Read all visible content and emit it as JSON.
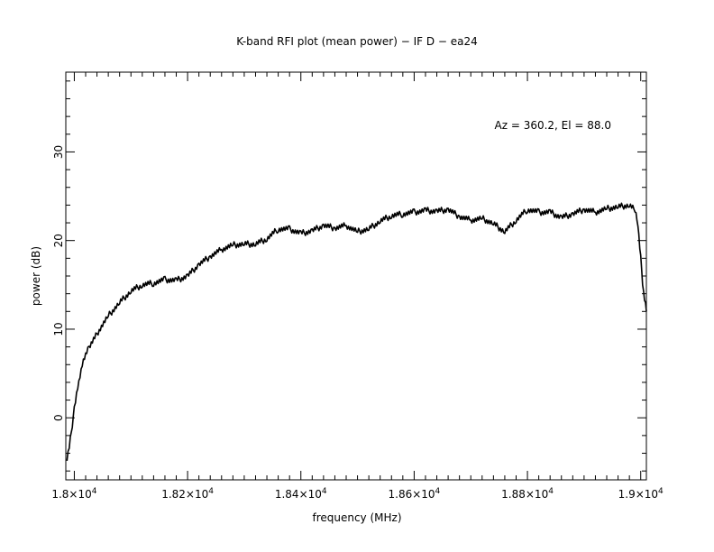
{
  "chart_data": {
    "type": "line",
    "title": "K-band RFI plot (mean power) − IF D − ea24",
    "xlabel": "frequency (MHz)",
    "ylabel": "power (dB)",
    "annotation": "Az = 360.2, El = 88.0",
    "xlim": [
      17985,
      19010
    ],
    "ylim": [
      -7,
      39
    ],
    "x_ticks": [
      {
        "value": 18000,
        "mantissa": "1.8×10",
        "exp": "4"
      },
      {
        "value": 18200,
        "mantissa": "1.82×10",
        "exp": "4"
      },
      {
        "value": 18400,
        "mantissa": "1.84×10",
        "exp": "4"
      },
      {
        "value": 18600,
        "mantissa": "1.86×10",
        "exp": "4"
      },
      {
        "value": 18800,
        "mantissa": "1.88×10",
        "exp": "4"
      },
      {
        "value": 19000,
        "mantissa": "1.9×10",
        "exp": "4"
      }
    ],
    "y_ticks": [
      {
        "value": 0,
        "label": "0"
      },
      {
        "value": 10,
        "label": "10"
      },
      {
        "value": 20,
        "label": "20"
      },
      {
        "value": 30,
        "label": "30"
      }
    ],
    "grid": false,
    "series": [
      {
        "x": [
          17987,
          17993,
          18000,
          18008,
          18016,
          18026,
          18040,
          18060,
          18080,
          18100,
          18120,
          18140,
          18160,
          18180,
          18200,
          18220,
          18240,
          18260,
          18280,
          18300,
          18320,
          18340,
          18360,
          18380,
          18400,
          18420,
          18440,
          18460,
          18480,
          18500,
          18520,
          18540,
          18560,
          18580,
          18600,
          18620,
          18640,
          18660,
          18680,
          18700,
          18720,
          18740,
          18760,
          18780,
          18800,
          18820,
          18840,
          18860,
          18880,
          18900,
          18920,
          18940,
          18960,
          18980,
          18990,
          18995,
          19000,
          19005,
          19010
        ],
        "y": [
          -4.5,
          -2.5,
          1,
          4,
          6.5,
          8,
          9.5,
          11.5,
          13,
          14.3,
          15,
          15.2,
          15.6,
          15.5,
          16,
          17.3,
          18.2,
          19,
          19.5,
          19.6,
          19.6,
          20.2,
          21.3,
          21.3,
          20.8,
          21.1,
          21.7,
          21.4,
          21.7,
          21,
          21.3,
          22.2,
          22.8,
          23,
          23.2,
          23.4,
          23.3,
          23.5,
          22.7,
          22.3,
          22.5,
          21.9,
          21,
          22.3,
          23.5,
          23.2,
          23.2,
          22.6,
          23,
          23.5,
          23.2,
          23.6,
          23.8,
          24,
          23.5,
          22,
          18,
          14,
          12
        ]
      }
    ]
  }
}
